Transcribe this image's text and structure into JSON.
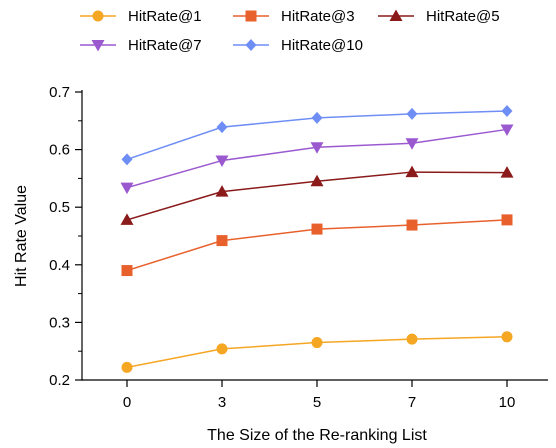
{
  "chart_data": {
    "type": "line",
    "xlabel": "The Size of the Re-ranking List",
    "ylabel": "Hit Rate Value",
    "categories": [
      "0",
      "3",
      "5",
      "7",
      "10"
    ],
    "ylim": [
      0.2,
      0.7
    ],
    "yticks": [
      "0.2",
      "0.3",
      "0.4",
      "0.5",
      "0.6",
      "0.7"
    ],
    "grid": false,
    "legend_position": "top",
    "series": [
      {
        "name": "HitRate@1",
        "color": "#F5A623",
        "marker": "circle",
        "values": [
          0.222,
          0.254,
          0.265,
          0.271,
          0.275
        ]
      },
      {
        "name": "HitRate@3",
        "color": "#E8612C",
        "marker": "square",
        "values": [
          0.39,
          0.442,
          0.462,
          0.469,
          0.478
        ]
      },
      {
        "name": "HitRate@5",
        "color": "#8B1A1A",
        "marker": "triangle-up",
        "values": [
          0.478,
          0.527,
          0.545,
          0.561,
          0.56
        ]
      },
      {
        "name": "HitRate@7",
        "color": "#9B59D0",
        "marker": "triangle-down",
        "values": [
          0.534,
          0.581,
          0.604,
          0.611,
          0.635
        ]
      },
      {
        "name": "HitRate@10",
        "color": "#6F8EF5",
        "marker": "diamond",
        "values": [
          0.583,
          0.639,
          0.655,
          0.662,
          0.667
        ]
      }
    ]
  }
}
